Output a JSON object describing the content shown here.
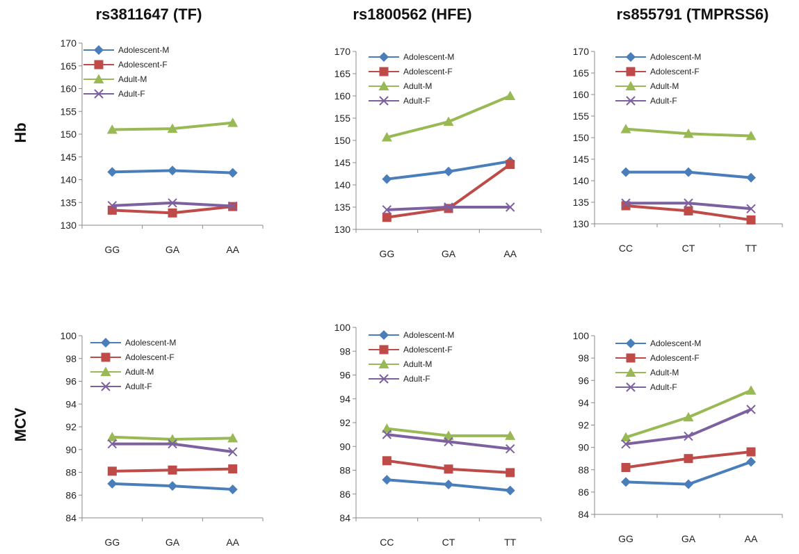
{
  "column_titles": [
    "rs3811647 (TF)",
    "rs1800562 (HFE)",
    "rs855791 (TMPRSS6)"
  ],
  "row_labels": [
    "Hb",
    "MCV"
  ],
  "colors": {
    "Adolescent-M": "#4a7ebb",
    "Adolescent-F": "#be4b48",
    "Adult-M": "#98b954",
    "Adult-F": "#7d60a0"
  },
  "chart_data": [
    {
      "type": "line",
      "title": "rs3811647 (TF)",
      "ylabel": "Hb",
      "categories": [
        "GG",
        "GA",
        "AA"
      ],
      "ylim": [
        130,
        170
      ],
      "ystep": 5,
      "series": [
        {
          "name": "Adolescent-M",
          "values": [
            141.7,
            142.0,
            141.5
          ]
        },
        {
          "name": "Adolescent-F",
          "values": [
            133.3,
            132.7,
            134.1
          ]
        },
        {
          "name": "Adult-M",
          "values": [
            151.0,
            151.2,
            152.5
          ]
        },
        {
          "name": "Adult-F",
          "values": [
            134.3,
            134.9,
            134.2
          ]
        }
      ]
    },
    {
      "type": "line",
      "title": "rs1800562 (HFE)",
      "ylabel": "Hb",
      "categories": [
        "GG",
        "GA",
        "AA"
      ],
      "ylim": [
        130,
        170
      ],
      "ystep": 5,
      "series": [
        {
          "name": "Adolescent-M",
          "values": [
            141.3,
            143.0,
            145.3
          ]
        },
        {
          "name": "Adolescent-F",
          "values": [
            132.7,
            134.7,
            144.6
          ]
        },
        {
          "name": "Adult-M",
          "values": [
            150.7,
            154.2,
            160.0
          ]
        },
        {
          "name": "Adult-F",
          "values": [
            134.4,
            135.0,
            135.0
          ]
        }
      ]
    },
    {
      "type": "line",
      "title": "rs855791 (TMPRSS6)",
      "ylabel": "Hb",
      "categories": [
        "CC",
        "CT",
        "TT"
      ],
      "ylim": [
        130,
        170
      ],
      "ystep": 5,
      "series": [
        {
          "name": "Adolescent-M",
          "values": [
            142.0,
            142.0,
            140.7
          ]
        },
        {
          "name": "Adolescent-F",
          "values": [
            134.2,
            133.0,
            130.9
          ]
        },
        {
          "name": "Adult-M",
          "values": [
            152.0,
            150.9,
            150.4
          ]
        },
        {
          "name": "Adult-F",
          "values": [
            134.8,
            134.8,
            133.5
          ]
        }
      ]
    },
    {
      "type": "line",
      "title": "rs3811647 (TF)",
      "ylabel": "MCV",
      "categories": [
        "GG",
        "GA",
        "AA"
      ],
      "ylim": [
        84,
        100
      ],
      "ystep": 2,
      "series": [
        {
          "name": "Adolescent-M",
          "values": [
            87.0,
            86.8,
            86.5
          ]
        },
        {
          "name": "Adolescent-F",
          "values": [
            88.1,
            88.2,
            88.3
          ]
        },
        {
          "name": "Adult-M",
          "values": [
            91.1,
            90.9,
            91.0
          ]
        },
        {
          "name": "Adult-F",
          "values": [
            90.5,
            90.5,
            89.8
          ]
        }
      ]
    },
    {
      "type": "line",
      "title": "rs1800562 (HFE)",
      "ylabel": "MCV",
      "categories": [
        "CC",
        "CT",
        "TT"
      ],
      "ylim": [
        84,
        100
      ],
      "ystep": 2,
      "series": [
        {
          "name": "Adolescent-M",
          "values": [
            87.2,
            86.8,
            86.3
          ]
        },
        {
          "name": "Adolescent-F",
          "values": [
            88.8,
            88.1,
            87.8
          ]
        },
        {
          "name": "Adult-M",
          "values": [
            91.5,
            90.9,
            90.9
          ]
        },
        {
          "name": "Adult-F",
          "values": [
            91.0,
            90.4,
            89.8
          ]
        }
      ]
    },
    {
      "type": "line",
      "title": "rs855791 (TMPRSS6)",
      "ylabel": "MCV",
      "categories": [
        "GG",
        "GA",
        "AA"
      ],
      "ylim": [
        84,
        100
      ],
      "ystep": 2,
      "series": [
        {
          "name": "Adolescent-M",
          "values": [
            86.9,
            86.7,
            88.7
          ]
        },
        {
          "name": "Adolescent-F",
          "values": [
            88.2,
            89.0,
            89.6
          ]
        },
        {
          "name": "Adult-M",
          "values": [
            90.9,
            92.7,
            95.1
          ]
        },
        {
          "name": "Adult-F",
          "values": [
            90.3,
            91.0,
            93.4
          ]
        }
      ]
    }
  ]
}
